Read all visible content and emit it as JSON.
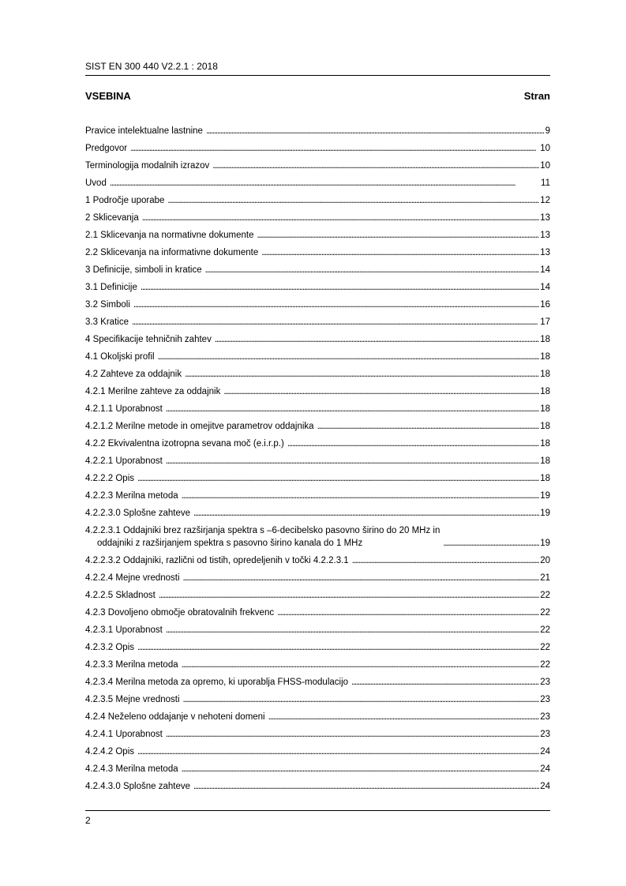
{
  "header": {
    "doc_id": "SIST EN 300 440 V2.2.1 : 2018"
  },
  "toc": {
    "title": "VSEBINA",
    "page_label": "Stran",
    "entries": [
      {
        "text": "Pravice intelektualne lastnine",
        "page": "9"
      },
      {
        "text": "Predgovor",
        "page": "10"
      },
      {
        "text": "Terminologija modalnih izrazov",
        "page": "10"
      },
      {
        "text": "Uvod",
        "page": "11"
      },
      {
        "text": "1  Področje uporabe",
        "page": "12"
      },
      {
        "text": "2  Sklicevanja",
        "page": "13"
      },
      {
        "text": "2.1  Sklicevanja na normativne dokumente",
        "page": "13"
      },
      {
        "text": "2.2  Sklicevanja na informativne dokumente",
        "page": "13"
      },
      {
        "text": "3  Definicije, simboli in kratice",
        "page": "14"
      },
      {
        "text": "3.1  Definicije",
        "page": "14"
      },
      {
        "text": "3.2  Simboli",
        "page": "16"
      },
      {
        "text": "3.3  Kratice",
        "page": "17"
      },
      {
        "text": "4  Specifikacije tehničnih zahtev",
        "page": "18"
      },
      {
        "text": "4.1  Okoljski profil",
        "page": "18"
      },
      {
        "text": "4.2  Zahteve za oddajnik",
        "page": "18"
      },
      {
        "text": "4.2.1  Merilne zahteve za oddajnik",
        "page": "18"
      },
      {
        "text": "4.2.1.1  Uporabnost",
        "page": "18"
      },
      {
        "text": "4.2.1.2  Merilne metode in omejitve parametrov oddajnika",
        "page": "18"
      },
      {
        "text": "4.2.2  Ekvivalentna izotropna sevana moč (e.i.r.p.)",
        "page": "18"
      },
      {
        "text": "4.2.2.1  Uporabnost",
        "page": "18"
      },
      {
        "text": "4.2.2.2  Opis",
        "page": "18"
      },
      {
        "text": "4.2.2.3  Merilna metoda",
        "page": "19"
      },
      {
        "text": "4.2.2.3.0  Splošne zahteve",
        "page": "19"
      },
      {
        "text": "4.2.2.3.1  Oddajniki brez razširjanja spektra s –6-decibelsko pasovno širino do 20 MHz in",
        "text2": "oddajniki z razširjanjem spektra s pasovno širino kanala do 1 MHz",
        "page": "19"
      },
      {
        "text": "4.2.2.3.2  Oddajniki, različni od tistih, opredeljenih v točki 4.2.2.3.1",
        "page": "20"
      },
      {
        "text": "4.2.2.4  Mejne vrednosti",
        "page": "21"
      },
      {
        "text": "4.2.2.5  Skladnost",
        "page": "22"
      },
      {
        "text": "4.2.3  Dovoljeno območje obratovalnih frekvenc",
        "page": "22"
      },
      {
        "text": "4.2.3.1  Uporabnost",
        "page": "22"
      },
      {
        "text": "4.2.3.2  Opis",
        "page": "22"
      },
      {
        "text": "4.2.3.3  Merilna metoda",
        "page": "22"
      },
      {
        "text": "4.2.3.4  Merilna metoda za opremo, ki uporablja FHSS-modulacijo",
        "page": "23"
      },
      {
        "text": "4.2.3.5  Mejne vrednosti",
        "page": "23"
      },
      {
        "text": "4.2.4  Neželeno oddajanje v nehoteni domeni",
        "page": "23"
      },
      {
        "text": "4.2.4.1  Uporabnost",
        "page": "23"
      },
      {
        "text": "4.2.4.2  Opis",
        "page": "24"
      },
      {
        "text": "4.2.4.3  Merilna metoda",
        "page": "24"
      },
      {
        "text": "4.2.4.3.0  Splošne zahteve",
        "page": "24"
      }
    ]
  },
  "footer": {
    "page_number": "2"
  }
}
